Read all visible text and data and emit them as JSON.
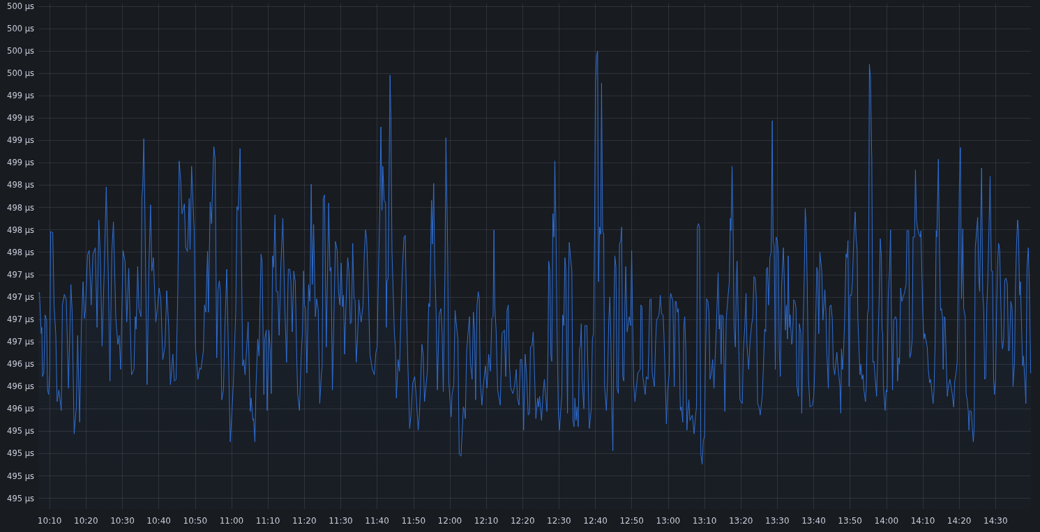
{
  "chart_data": {
    "type": "area",
    "color": "#2f6fd6",
    "grid": true,
    "xlim": [
      10.115,
      14.662
    ],
    "xticks": [
      {
        "value": 10.16667,
        "label": "10:10"
      },
      {
        "value": 10.33333,
        "label": "10:20"
      },
      {
        "value": 10.5,
        "label": "10:30"
      },
      {
        "value": 10.66667,
        "label": "10:40"
      },
      {
        "value": 10.83333,
        "label": "10:50"
      },
      {
        "value": 11,
        "label": "11:00"
      },
      {
        "value": 11.16667,
        "label": "11:10"
      },
      {
        "value": 11.33333,
        "label": "11:20"
      },
      {
        "value": 11.5,
        "label": "11:30"
      },
      {
        "value": 11.66667,
        "label": "11:40"
      },
      {
        "value": 11.83333,
        "label": "11:50"
      },
      {
        "value": 12,
        "label": "12:00"
      },
      {
        "value": 12.16667,
        "label": "12:10"
      },
      {
        "value": 12.33333,
        "label": "12:20"
      },
      {
        "value": 12.5,
        "label": "12:30"
      },
      {
        "value": 12.66667,
        "label": "12:40"
      },
      {
        "value": 12.83333,
        "label": "12:50"
      },
      {
        "value": 13,
        "label": "13:00"
      },
      {
        "value": 13.16667,
        "label": "13:10"
      },
      {
        "value": 13.33333,
        "label": "13:20"
      },
      {
        "value": 13.5,
        "label": "13:30"
      },
      {
        "value": 13.66667,
        "label": "13:40"
      },
      {
        "value": 13.83333,
        "label": "13:50"
      },
      {
        "value": 14,
        "label": "14:00"
      },
      {
        "value": 14.16667,
        "label": "14:10"
      },
      {
        "value": 14.33333,
        "label": "14:20"
      },
      {
        "value": 14.5,
        "label": "14:30"
      }
    ],
    "ylim": [
      494.63,
      500.28
    ],
    "yticks": [
      {
        "value": 494.75,
        "label": "495 µs"
      },
      {
        "value": 495,
        "label": "495 µs"
      },
      {
        "value": 495.25,
        "label": "495 µs"
      },
      {
        "value": 495.5,
        "label": "495 µs"
      },
      {
        "value": 495.75,
        "label": "496 µs"
      },
      {
        "value": 496,
        "label": "496 µs"
      },
      {
        "value": 496.25,
        "label": "496 µs"
      },
      {
        "value": 496.5,
        "label": "497 µs"
      },
      {
        "value": 496.75,
        "label": "497 µs"
      },
      {
        "value": 497,
        "label": "497 µs"
      },
      {
        "value": 497.25,
        "label": "497 µs"
      },
      {
        "value": 497.5,
        "label": "498 µs"
      },
      {
        "value": 497.75,
        "label": "498 µs"
      },
      {
        "value": 498,
        "label": "498 µs"
      },
      {
        "value": 498.25,
        "label": "498 µs"
      },
      {
        "value": 498.5,
        "label": "499 µs"
      },
      {
        "value": 498.75,
        "label": "499 µs"
      },
      {
        "value": 499,
        "label": "499 µs"
      },
      {
        "value": 499.25,
        "label": "499 µs"
      },
      {
        "value": 499.5,
        "label": "500 µs"
      },
      {
        "value": 499.75,
        "label": "500 µs"
      },
      {
        "value": 500,
        "label": "500 µs"
      },
      {
        "value": 500.25,
        "label": "500 µs"
      }
    ],
    "x": [
      10.115,
      10.12,
      10.128,
      10.131,
      10.134,
      10.14,
      10.146,
      10.153,
      10.157,
      10.162,
      10.167,
      10.171,
      10.181,
      10.187,
      10.195,
      10.201,
      10.209,
      10.22,
      10.225,
      10.234,
      10.243,
      10.253,
      10.264,
      10.27,
      10.279,
      10.289,
      10.295,
      10.304,
      10.312,
      10.32,
      10.326,
      10.331,
      10.34,
      10.348,
      10.357,
      10.365,
      10.376,
      10.384,
      10.392,
      10.399,
      10.407,
      10.417,
      10.426,
      10.435,
      10.443,
      10.451,
      10.459,
      10.47,
      10.479,
      10.485,
      10.492,
      10.503,
      10.512,
      10.52,
      10.529,
      10.542,
      10.553,
      10.559,
      10.563,
      10.57,
      10.576,
      10.585,
      10.589,
      10.593,
      10.598,
      10.603,
      10.613,
      10.621,
      10.629,
      10.635,
      10.642,
      10.653,
      10.66,
      10.668,
      10.676,
      10.685,
      10.695,
      10.703,
      10.712,
      10.72,
      10.731,
      10.738,
      10.746,
      10.754,
      10.76,
      10.767,
      10.773,
      10.784,
      10.79,
      10.798,
      10.806,
      10.81,
      10.817,
      10.823,
      10.829,
      10.835,
      10.846,
      10.854,
      10.86,
      10.871,
      10.876,
      10.882,
      10.89,
      10.894,
      10.902,
      10.908,
      10.915,
      10.919,
      10.925,
      10.932,
      10.938,
      10.944,
      10.949,
      10.955,
      10.963,
      10.969,
      10.978,
      10.986,
      10.994,
      11.002,
      11.009,
      11.019,
      11.025,
      11.031,
      11.039,
      11.045,
      11.051,
      11.056,
      11.062,
      11.067,
      11.076,
      11.086,
      11.09,
      11.098,
      11.101,
      11.107,
      11.112,
      11.12,
      11.126,
      11.135,
      11.14,
      11.148,
      11.152,
      11.159,
      11.163,
      11.171,
      11.177,
      11.182,
      11.188,
      11.193,
      11.199,
      11.205,
      11.212,
      11.218,
      11.226,
      11.235,
      11.244,
      11.252,
      11.26,
      11.267,
      11.272,
      11.278,
      11.285,
      11.292,
      11.299,
      11.303,
      11.311,
      11.319,
      11.325,
      11.33,
      11.334,
      11.339,
      11.345,
      11.353,
      11.359,
      11.365,
      11.37,
      11.376,
      11.384,
      11.39,
      11.397,
      11.404,
      11.411,
      11.415,
      11.42,
      11.426,
      11.434,
      11.439,
      11.445,
      11.451,
      11.456,
      11.462,
      11.47,
      11.476,
      11.484,
      11.49,
      11.496,
      11.502,
      11.508,
      11.513,
      11.518,
      11.524,
      11.532,
      11.538,
      11.544,
      11.549,
      11.555,
      11.561,
      11.566,
      11.571,
      11.577,
      11.583,
      11.589,
      11.594,
      11.602,
      11.608,
      11.614,
      11.619,
      11.627,
      11.634,
      11.645,
      11.654,
      11.661,
      11.667,
      11.673,
      11.679,
      11.684,
      11.689,
      11.693,
      11.699,
      11.706,
      11.709,
      11.712,
      11.717,
      11.721,
      11.726,
      11.73,
      11.735,
      11.74,
      11.746,
      11.751,
      11.755,
      11.763,
      11.769,
      11.776,
      11.782,
      11.79,
      11.796,
      11.802,
      11.808,
      11.816,
      11.822,
      11.83,
      11.839,
      11.846,
      11.855,
      11.861,
      11.872,
      11.878,
      11.884,
      11.897,
      11.903,
      11.908,
      11.916,
      11.92,
      11.926,
      11.931,
      11.937,
      11.943,
      11.951,
      11.959,
      11.965,
      11.97,
      11.978,
      11.982,
      11.99,
      11.995,
      12.006,
      12.01,
      12.018,
      12.024,
      12.032,
      12.037,
      12.043,
      12.051,
      12.062,
      12.066,
      12.071,
      12.077,
      12.085,
      12.09,
      12.094,
      12.102,
      12.108,
      12.113,
      12.118,
      12.124,
      12.13,
      12.135,
      12.139,
      12.147,
      12.153,
      12.163,
      12.17,
      12.178,
      12.186,
      12.192,
      12.198,
      12.202,
      12.206,
      12.212,
      12.219,
      12.231,
      12.239,
      12.25,
      12.256,
      12.262,
      12.268,
      12.273,
      12.279,
      12.289,
      12.296,
      12.304,
      12.31,
      12.317,
      12.323,
      12.329,
      12.334,
      12.338,
      12.345,
      12.351,
      12.359,
      12.365,
      12.369,
      12.376,
      12.382,
      12.388,
      12.394,
      12.402,
      12.406,
      12.411,
      12.42,
      12.427,
      12.433,
      12.441,
      12.445,
      12.45,
      12.453,
      12.458,
      12.463,
      12.467,
      12.472,
      12.477,
      12.481,
      12.486,
      12.491,
      12.497,
      12.502,
      12.513,
      12.517,
      12.522,
      12.527,
      12.531,
      12.539,
      12.544,
      12.547,
      12.553,
      12.559,
      12.564,
      12.569,
      12.573,
      12.578,
      12.583,
      12.588,
      12.594,
      12.598,
      12.602,
      12.606,
      12.614,
      12.619,
      12.628,
      12.633,
      12.639,
      12.648,
      12.653,
      12.658,
      12.663,
      12.667,
      12.672,
      12.677,
      12.681,
      12.686,
      12.691,
      12.695,
      12.7,
      12.705,
      12.709,
      12.717,
      12.722,
      12.728,
      12.733,
      12.738,
      12.742,
      12.747,
      12.752,
      12.756,
      12.761,
      12.766,
      12.772,
      12.777,
      12.783,
      12.787,
      12.792,
      12.797,
      12.802,
      12.806,
      12.812,
      12.822,
      12.828,
      12.833,
      12.837,
      12.842,
      12.848,
      12.861,
      12.872,
      12.875,
      12.88,
      12.884,
      12.895,
      12.9,
      12.908,
      12.916,
      12.922,
      12.927,
      12.937,
      12.942,
      12.947,
      12.958,
      12.964,
      12.97,
      12.977,
      12.981,
      12.986,
      12.992,
      12.998,
      13.005,
      13.009,
      13.012,
      13.022,
      13.028,
      13.033,
      13.037,
      13.042,
      13.047,
      13.05,
      13.056,
      13.061,
      13.067,
      13.072,
      13.076,
      13.081,
      13.086,
      13.091,
      13.095,
      13.1,
      13.111,
      13.119,
      13.125,
      13.13,
      13.134,
      13.139,
      13.144,
      13.15,
      13.156,
      13.161,
      13.167,
      13.17,
      13.176,
      13.182,
      13.187,
      13.192,
      13.198,
      13.204,
      13.21,
      13.217,
      13.223,
      13.229,
      13.234,
      13.238,
      13.243,
      13.246,
      13.252,
      13.26,
      13.266,
      13.274,
      13.28,
      13.285,
      13.288,
      13.293,
      13.298,
      13.302,
      13.308,
      13.313,
      13.316,
      13.323,
      13.329,
      13.34,
      13.344,
      13.351,
      13.357,
      13.361,
      13.369,
      13.375,
      13.382,
      13.388,
      13.393,
      13.399,
      13.404,
      13.41,
      13.416,
      13.422,
      13.432,
      13.438,
      13.442,
      13.447,
      13.45,
      13.455,
      13.46,
      13.466,
      13.472,
      13.477,
      13.481,
      13.486,
      13.491,
      13.495,
      13.5,
      13.505,
      13.509,
      13.514,
      13.52,
      13.528,
      13.533,
      13.537,
      13.542,
      13.547,
      13.55,
      13.555,
      13.559,
      13.566,
      13.57,
      13.575,
      13.581,
      13.586,
      13.59,
      13.597,
      13.601,
      13.608,
      13.612,
      13.618,
      13.623,
      13.628,
      13.632,
      13.637,
      13.643,
      13.65,
      13.661,
      13.667,
      13.671,
      13.676,
      13.681,
      13.685,
      13.69,
      13.695,
      13.704,
      13.709,
      13.718,
      13.723,
      13.727,
      13.734,
      13.74,
      13.746,
      13.752,
      13.757,
      13.763,
      13.768,
      13.773,
      13.777,
      13.787,
      13.791,
      13.794,
      13.799,
      13.804,
      13.808,
      13.815,
      13.819,
      13.824,
      13.829,
      13.833,
      13.84,
      13.844,
      13.851,
      13.857,
      13.861,
      13.866,
      13.869,
      13.874,
      13.879,
      13.883,
      13.888,
      13.893,
      13.897,
      13.904,
      13.908,
      13.913,
      13.918,
      13.922,
      13.927,
      13.932,
      13.933,
      13.938,
      13.943,
      13.949,
      13.955,
      13.96,
      13.966,
      13.972,
      13.977,
      13.98,
      13.983,
      13.986,
      13.994,
      13.999,
      14.003,
      14.008,
      14.014,
      14.019,
      14.023,
      14.028,
      14.033,
      14.042,
      14.047,
      14.051,
      14.056,
      14.06,
      14.065,
      14.071,
      14.084,
      14.09,
      14.094,
      14.102,
      14.107,
      14.112,
      14.118,
      14.122,
      14.129,
      14.133,
      14.138,
      14.142,
      14.149,
      14.155,
      14.158,
      14.163,
      14.167,
      14.172,
      14.176,
      14.187,
      14.192,
      14.198,
      14.203,
      14.209,
      14.214,
      14.218,
      14.223,
      14.228,
      14.231,
      14.235,
      14.238,
      14.243,
      14.248,
      14.252,
      14.257,
      14.26,
      14.265,
      14.269,
      14.274,
      14.279,
      14.285,
      14.291,
      14.296,
      14.302,
      14.308,
      14.313,
      14.319,
      14.324,
      14.33,
      14.334,
      14.339,
      14.344,
      14.35,
      14.354,
      14.361,
      14.365,
      14.37,
      14.375,
      14.378,
      14.382,
      14.389,
      14.393,
      14.398,
      14.402,
      14.407,
      14.412,
      14.418,
      14.423,
      14.427,
      14.432,
      14.436,
      14.441,
      14.446,
      14.45,
      14.455,
      14.46,
      14.464,
      14.469,
      14.475,
      14.481,
      14.486,
      14.491,
      14.495,
      14.5,
      14.505,
      14.509,
      14.514,
      14.519,
      14.523,
      14.528,
      14.532,
      14.537,
      14.542,
      14.548,
      14.554,
      14.559,
      14.563,
      14.57,
      14.576,
      14.58,
      14.587,
      14.591,
      14.596,
      14.601,
      14.605,
      14.61,
      14.614,
      14.619,
      14.624,
      14.628,
      14.633,
      14.639,
      14.644,
      14.65,
      14.655,
      14.661
    ],
    "values": [
      497.04,
      497.05,
      496.59,
      496.66,
      496.11,
      496.15,
      496.8,
      496.74,
      495.96,
      495.91,
      496.15,
      497.73,
      497.72,
      496.91,
      496.57,
      495.83,
      495.96,
      495.73,
      496.91,
      497.03,
      496.97,
      495.98,
      497.14,
      496.83,
      495.47,
      495.77,
      496.57,
      495.6,
      496.68,
      497.17,
      496.76,
      496.87,
      497.47,
      497.52,
      496.91,
      497.48,
      497.55,
      496.66,
      497.86,
      497.44,
      496.45,
      497.33,
      498.23,
      497.29,
      496.06,
      497.48,
      497.84,
      496.76,
      496.47,
      496.57,
      496.19,
      497.52,
      497.4,
      496.72,
      497.32,
      496.13,
      496.19,
      496.78,
      496.64,
      497.34,
      496.87,
      496.78,
      498.12,
      498.22,
      498.77,
      497.97,
      496.02,
      497.29,
      498.03,
      497.29,
      497.44,
      496.72,
      496.87,
      497.1,
      496.98,
      496.3,
      496.45,
      497.07,
      496.68,
      496.02,
      496.36,
      496.06,
      496.08,
      497.1,
      498.52,
      498.31,
      497.93,
      498.04,
      497.55,
      497.51,
      498.1,
      497.53,
      498.46,
      498.09,
      497.74,
      496.42,
      496.08,
      496.21,
      496.19,
      496.4,
      496.91,
      496.83,
      497.51,
      496.83,
      498.06,
      497.82,
      498.39,
      498.68,
      498.54,
      496.32,
      497.08,
      497.18,
      497.06,
      495.85,
      495.96,
      496.61,
      497.31,
      496.36,
      495.38,
      495.72,
      496.09,
      496.83,
      498.01,
      497.97,
      498.66,
      497.59,
      496.23,
      496.3,
      496.13,
      496.34,
      496.72,
      495.72,
      495.87,
      495.62,
      495.64,
      495.38,
      496.0,
      496.53,
      496.34,
      497.48,
      497.4,
      495.91,
      496.53,
      496.63,
      495.73,
      496.63,
      496.42,
      495.92,
      497.46,
      497.33,
      497.92,
      497.06,
      497.06,
      496.57,
      497.36,
      497.88,
      496.89,
      496.27,
      497.31,
      497.31,
      497.17,
      496.61,
      497.29,
      497.17,
      496.3,
      495.91,
      495.73,
      496.34,
      496.63,
      497.29,
      496.91,
      496.87,
      496.15,
      497.14,
      496.95,
      498.26,
      497.14,
      497.81,
      496.78,
      496.98,
      496.86,
      495.81,
      496.11,
      496.23,
      498.1,
      498.14,
      496.44,
      497.17,
      498.05,
      497.29,
      497.33,
      495.96,
      496.91,
      497.62,
      497.52,
      497.06,
      496.91,
      497.38,
      496.89,
      497.02,
      496.36,
      496.89,
      497.44,
      497.29,
      496.7,
      496.72,
      497.6,
      496.98,
      496.97,
      496.27,
      496.53,
      496.97,
      496.8,
      496.72,
      496.91,
      497.48,
      497.75,
      497.65,
      497.06,
      496.36,
      496.19,
      496.13,
      496.38,
      496.44,
      497.29,
      497.95,
      498.9,
      497.97,
      498.46,
      498.08,
      498.05,
      496.66,
      497.17,
      497.21,
      498.2,
      499.48,
      499.03,
      497.5,
      497.1,
      496.59,
      496.42,
      495.87,
      496.3,
      496.17,
      496.8,
      497.29,
      497.67,
      497.69,
      496.81,
      496.23,
      495.53,
      495.68,
      496.04,
      496.11,
      495.89,
      495.51,
      495.7,
      496.47,
      496.36,
      495.83,
      496.17,
      496.93,
      496.89,
      498.08,
      497.59,
      498.27,
      497.33,
      496.85,
      495.96,
      496.8,
      496.87,
      496.59,
      495.94,
      497.36,
      498.78,
      497.55,
      496.06,
      495.66,
      495.91,
      496.02,
      496.85,
      496.64,
      496.53,
      495.24,
      495.22,
      495.77,
      495.75,
      495.64,
      496.4,
      496.64,
      496.78,
      496.27,
      496.08,
      496.83,
      496.63,
      495.85,
      496.89,
      497.06,
      496.98,
      496.08,
      495.79,
      496.0,
      496.23,
      495.98,
      496.36,
      496.17,
      496.76,
      496.78,
      497.75,
      496.89,
      496.63,
      495.96,
      495.79,
      496.59,
      496.63,
      496.11,
      496.85,
      496.91,
      496.25,
      495.98,
      495.92,
      496.0,
      496.19,
      495.87,
      495.79,
      496.3,
      496.3,
      496.04,
      495.51,
      496.36,
      496.15,
      495.68,
      495.7,
      496.44,
      496.45,
      496.61,
      496.15,
      495.64,
      495.87,
      495.77,
      495.89,
      495.62,
      495.92,
      496.08,
      495.83,
      495.72,
      496.49,
      497.4,
      497.29,
      496.34,
      496.28,
      497.93,
      497.67,
      498.52,
      497.82,
      496.68,
      495.72,
      495.51,
      495.91,
      496.8,
      496.68,
      497.44,
      497.33,
      495.7,
      497.25,
      497.61,
      497.44,
      497.29,
      495.62,
      495.55,
      495.87,
      495.62,
      495.77,
      495.55,
      496.42,
      496.45,
      496.7,
      496.08,
      495.75,
      496.68,
      496.68,
      496.15,
      495.53,
      495.75,
      496.53,
      496.59,
      497.74,
      499.39,
      499.69,
      499.75,
      497.17,
      497.78,
      497.7,
      499.39,
      497.74,
      497.7,
      496.0,
      495.73,
      496.04,
      496.74,
      497.0,
      496.49,
      495.77,
      495.28,
      496.91,
      497.46,
      497.34,
      495.98,
      495.92,
      497.59,
      497.63,
      497.78,
      496.11,
      496.06,
      496.91,
      497.34,
      496.61,
      496.78,
      496.68,
      497.52,
      496.78,
      496.04,
      495.83,
      496.15,
      496.19,
      496.91,
      496.89,
      496.11,
      495.91,
      496.11,
      496.08,
      496.97,
      496.98,
      496.15,
      496.0,
      496.47,
      496.74,
      496.8,
      497.02,
      496.81,
      496.8,
      496.57,
      496.15,
      495.58,
      495.96,
      496.15,
      496.97,
      497.04,
      496.95,
      496.0,
      496.95,
      496.95,
      496.83,
      496.87,
      496.51,
      495.73,
      495.77,
      495.6,
      496.68,
      496.78,
      496.42,
      495.51,
      495.75,
      495.85,
      495.62,
      495.68,
      495.47,
      495.66,
      495.77,
      497.78,
      497.82,
      497.78,
      495.24,
      495.13,
      495.39,
      495.45,
      496.15,
      496.98,
      496.95,
      496.83,
      496.08,
      496.15,
      496.3,
      495.98,
      496.42,
      496.83,
      497.27,
      496.64,
      496.8,
      496.25,
      496.8,
      496.78,
      495.72,
      496.74,
      497.0,
      497.16,
      497.88,
      497.74,
      498.46,
      497.7,
      496.68,
      496.44,
      497.23,
      497.4,
      496.53,
      495.85,
      495.81,
      496.38,
      496.66,
      497.04,
      496.47,
      496.19,
      496.49,
      496.68,
      496.78,
      497.23,
      497.21,
      496.98,
      495.81,
      495.77,
      495.68,
      495.92,
      496.34,
      496.64,
      496.61,
      497.31,
      497.33,
      496.91,
      497.44,
      497.5,
      498.97,
      497.63,
      497.57,
      496.19,
      497.67,
      497.63,
      497.48,
      496.42,
      496.11,
      497.14,
      497.55,
      497.1,
      496.63,
      496.91,
      496.53,
      497.46,
      496.66,
      496.8,
      496.47,
      496.53,
      496.97,
      496.95,
      496.87,
      496.0,
      495.89,
      496.7,
      496.59,
      495.7,
      496.66,
      497.17,
      497.99,
      497.82,
      497.17,
      496.08,
      495.77,
      495.79,
      495.89,
      496.15,
      496.74,
      497.33,
      497.29,
      496.59,
      497.5,
      497.29,
      496.74,
      497.08,
      496.83,
      496.38,
      495.98,
      496.89,
      496.91,
      496.76,
      496.23,
      496.13,
      496.27,
      496.38,
      496.25,
      496.0,
      495.7,
      496.42,
      496.19,
      496.42,
      496.7,
      497.48,
      497.44,
      497.63,
      496.0,
      497.02,
      497.02,
      497.17,
      497.7,
      497.95,
      497.67,
      497.52,
      496.78,
      496.45,
      496.13,
      496.25,
      496.08,
      496.13,
      495.96,
      495.83,
      496.02,
      496.81,
      496.87,
      499.6,
      499.45,
      498.65,
      498.56,
      496.27,
      496.28,
      496.08,
      495.89,
      496.34,
      496.91,
      497.65,
      497.44,
      496.64,
      496.59,
      496.02,
      495.73,
      495.96,
      495.94,
      496.98,
      497.29,
      497.75,
      496.76,
      495.96,
      496.74,
      496.78,
      496.74,
      496.06,
      496.32,
      496.25,
      497.1,
      496.95,
      497.06,
      497.14,
      497.74,
      497.74,
      496.32,
      496.36,
      496.53,
      497.67,
      497.67,
      498.42,
      497.86,
      497.78,
      497.7,
      497.67,
      497.74,
      497.21,
      496.8,
      496.53,
      496.59,
      496.44,
      496.19,
      496.04,
      496.08,
      495.92,
      495.81,
      495.96,
      496.49,
      497.74,
      497.67,
      498.16,
      498.54,
      497.55,
      496.85,
      496.87,
      496.78,
      496.19,
      496.78,
      496.76,
      496.3,
      495.89,
      496.02,
      496.08,
      496.0,
      495.91,
      495.77,
      496.06,
      496.15,
      496.27,
      497.36,
      498.2,
      498.67,
      496.98,
      497.76,
      496.87,
      496.78,
      495.92,
      495.85,
      495.72,
      495.51,
      495.73,
      495.72,
      495.56,
      495.38,
      495.53,
      497.55,
      497.7,
      497.89,
      497.21,
      497.06,
      497.86,
      498.44,
      497.06,
      496.85,
      496.08,
      496.1,
      496.91,
      497.17,
      497.67,
      498.35,
      497.29,
      497.29,
      496.08,
      495.91,
      496.08,
      496.91,
      497.36,
      497.6,
      497.52,
      497.06,
      496.53,
      496.42,
      496.53,
      497.19,
      497.21,
      497.14,
      496.4,
      496.4,
      496.95,
      496.87,
      496.0,
      496.27,
      497.1,
      497.59,
      497.86,
      497.74,
      497.02,
      497.17,
      496.68,
      496.23,
      496.34,
      496.11,
      495.81,
      497.33,
      497.55,
      497.1,
      496.15
    ]
  }
}
